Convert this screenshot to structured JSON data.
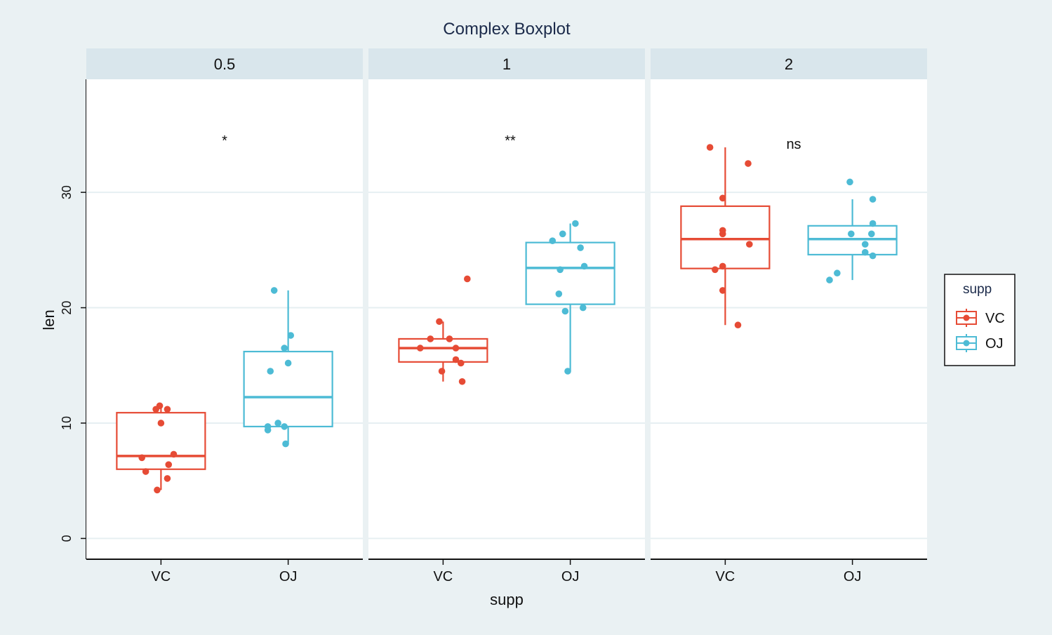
{
  "chart_data": {
    "type": "box",
    "title": "Complex Boxplot",
    "xlabel": "supp",
    "ylabel": "len",
    "ylim": [
      -1.8,
      39.8
    ],
    "yticks": [
      0,
      10,
      20,
      30
    ],
    "grid": true,
    "facet_labels": [
      "0.5",
      "1",
      "2"
    ],
    "categories": [
      "VC",
      "OJ"
    ],
    "legend": {
      "title": "supp",
      "placement": "right",
      "entries": [
        {
          "name": "VC",
          "color": "#e64b35"
        },
        {
          "name": "OJ",
          "color": "#4dbbd5"
        }
      ]
    },
    "panels": [
      {
        "dose": "0.5",
        "annotation": "*",
        "annotation_y": 34.5,
        "groups": [
          {
            "supp": "VC",
            "color": "#e64b35",
            "stats": {
              "min": 4.2,
              "q1": 6.0,
              "median": 7.15,
              "q3": 10.9,
              "max": 11.5
            },
            "points": [
              4.2,
              11.5,
              7.3,
              5.8,
              6.4,
              10.0,
              11.2,
              11.2,
              5.2,
              7.0
            ],
            "jitter": [
              -0.03,
              -0.01,
              0.1,
              -0.12,
              0.06,
              0.0,
              -0.04,
              0.05,
              0.05,
              -0.15
            ]
          },
          {
            "supp": "OJ",
            "color": "#4dbbd5",
            "stats": {
              "min": 8.2,
              "q1": 9.7,
              "median": 12.25,
              "q3": 16.2,
              "max": 21.5
            },
            "points": [
              15.2,
              21.5,
              17.6,
              9.7,
              14.5,
              10.0,
              8.2,
              9.4,
              16.5,
              9.7
            ],
            "jitter": [
              0.0,
              -0.11,
              0.02,
              -0.16,
              -0.14,
              -0.08,
              -0.02,
              -0.16,
              -0.03,
              -0.03
            ]
          }
        ]
      },
      {
        "dose": "1",
        "annotation": "**",
        "annotation_y": 34.5,
        "groups": [
          {
            "supp": "VC",
            "color": "#e64b35",
            "stats": {
              "min": 13.6,
              "q1": 15.3,
              "median": 16.5,
              "q3": 17.3,
              "max": 18.8
            },
            "points": [
              16.5,
              16.5,
              15.2,
              17.3,
              22.5,
              17.3,
              13.6,
              14.5,
              18.8,
              15.5
            ],
            "jitter": [
              -0.18,
              0.1,
              0.14,
              -0.1,
              0.19,
              0.05,
              0.15,
              -0.01,
              -0.03,
              0.1
            ]
          },
          {
            "supp": "OJ",
            "color": "#4dbbd5",
            "stats": {
              "min": 14.5,
              "q1": 20.3,
              "median": 23.45,
              "q3": 25.65,
              "max": 27.3
            },
            "points": [
              19.7,
              23.3,
              23.6,
              26.4,
              20.0,
              25.2,
              25.8,
              21.2,
              14.5,
              27.3
            ],
            "jitter": [
              -0.04,
              -0.08,
              0.11,
              -0.06,
              0.1,
              0.08,
              -0.14,
              -0.09,
              -0.02,
              0.04
            ]
          }
        ]
      },
      {
        "dose": "2",
        "annotation": "ns",
        "annotation_y": 34.2,
        "groups": [
          {
            "supp": "VC",
            "color": "#e64b35",
            "stats": {
              "min": 18.5,
              "q1": 23.4,
              "median": 25.95,
              "q3": 28.8,
              "max": 33.9
            },
            "points": [
              23.6,
              18.5,
              33.9,
              25.5,
              26.4,
              32.5,
              26.7,
              21.5,
              23.3,
              29.5
            ],
            "jitter": [
              -0.02,
              0.1,
              -0.12,
              0.19,
              -0.02,
              0.18,
              -0.02,
              -0.02,
              -0.08,
              -0.02
            ]
          },
          {
            "supp": "OJ",
            "color": "#4dbbd5",
            "stats": {
              "min": 22.4,
              "q1": 24.6,
              "median": 25.95,
              "q3": 27.1,
              "max": 29.4
            },
            "points": [
              25.5,
              26.4,
              22.4,
              24.5,
              24.8,
              30.9,
              26.4,
              27.3,
              29.4,
              23.0
            ],
            "jitter": [
              0.1,
              -0.01,
              -0.18,
              0.16,
              0.1,
              -0.02,
              0.15,
              0.16,
              0.16,
              -0.12
            ]
          }
        ]
      }
    ]
  }
}
